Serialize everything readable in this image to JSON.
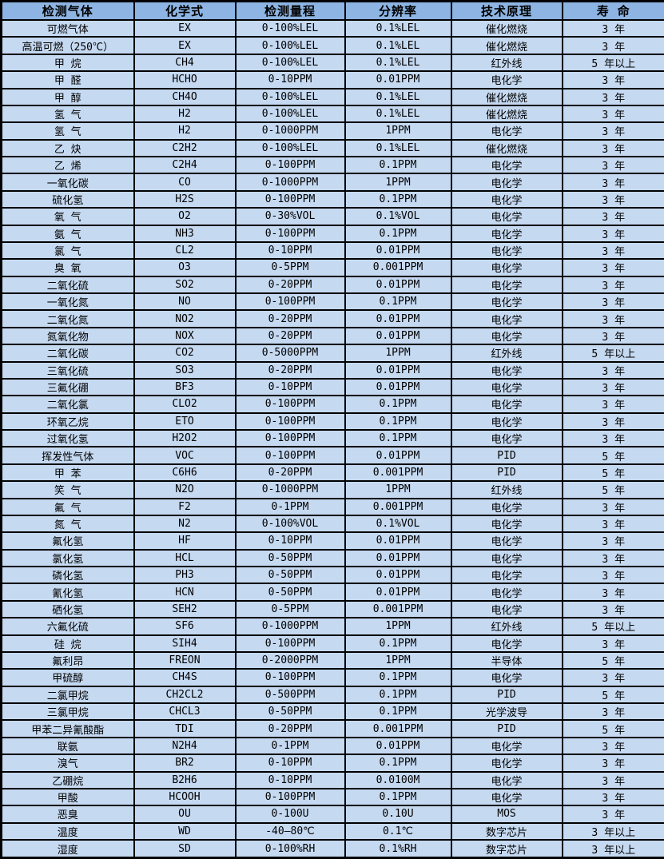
{
  "colors": {
    "header_bg": "#8db4e2",
    "row_bg": "#c5d9f1",
    "border": "#000000",
    "text": "#000000"
  },
  "chart_data": {
    "type": "table",
    "title": "",
    "columns": [
      "检测气体",
      "化学式",
      "检测量程",
      "分辨率",
      "技术原理",
      "寿 命"
    ],
    "rows": [
      [
        "可燃气体",
        "EX",
        "0-100%LEL",
        "0.1%LEL",
        "催化燃烧",
        "3 年"
      ],
      [
        "高温可燃（250℃）",
        "EX",
        "0-100%LEL",
        "0.1%LEL",
        "催化燃烧",
        "3 年"
      ],
      [
        "甲 烷",
        "CH4",
        "0-100%LEL",
        "0.1%LEL",
        "红外线",
        "5 年以上"
      ],
      [
        "甲 醛",
        "HCHO",
        "0-10PPM",
        "0.01PPM",
        "电化学",
        "3 年"
      ],
      [
        "甲 醇",
        "CH4O",
        "0-100%LEL",
        "0.1%LEL",
        "催化燃烧",
        "3 年"
      ],
      [
        "氢 气",
        "H2",
        "0-100%LEL",
        "0.1%LEL",
        "催化燃烧",
        "3 年"
      ],
      [
        "氢 气",
        "H2",
        "0-1000PPM",
        "1PPM",
        "电化学",
        "3 年"
      ],
      [
        "乙 炔",
        "C2H2",
        "0-100%LEL",
        "0.1%LEL",
        "催化燃烧",
        "3 年"
      ],
      [
        "乙 烯",
        "C2H4",
        "0-100PPM",
        "0.1PPM",
        "电化学",
        "3 年"
      ],
      [
        "一氧化碳",
        "CO",
        "0-1000PPM",
        "1PPM",
        "电化学",
        "3 年"
      ],
      [
        "硫化氢",
        "H2S",
        "0-100PPM",
        "0.1PPM",
        "电化学",
        "3 年"
      ],
      [
        "氧 气",
        "O2",
        "0-30%VOL",
        "0.1%VOL",
        "电化学",
        "3 年"
      ],
      [
        "氨 气",
        "NH3",
        "0-100PPM",
        "0.1PPM",
        "电化学",
        "3 年"
      ],
      [
        "氯 气",
        "CL2",
        "0-10PPM",
        "0.01PPM",
        "电化学",
        "3 年"
      ],
      [
        "臭 氧",
        "O3",
        "0-5PPM",
        "0.001PPM",
        "电化学",
        "3 年"
      ],
      [
        "二氧化硫",
        "SO2",
        "0-20PPM",
        "0.01PPM",
        "电化学",
        "3 年"
      ],
      [
        "一氧化氮",
        "NO",
        "0-100PPM",
        "0.1PPM",
        "电化学",
        "3 年"
      ],
      [
        "二氧化氮",
        "NO2",
        "0-20PPM",
        "0.01PPM",
        "电化学",
        "3 年"
      ],
      [
        "氮氧化物",
        "NOX",
        "0-20PPM",
        "0.01PPM",
        "电化学",
        "3 年"
      ],
      [
        "二氧化碳",
        "CO2",
        "0-5000PPM",
        "1PPM",
        "红外线",
        "5 年以上"
      ],
      [
        "三氧化硫",
        "SO3",
        "0-20PPM",
        "0.01PPM",
        "电化学",
        "3 年"
      ],
      [
        "三氟化硼",
        "BF3",
        "0-10PPM",
        "0.01PPM",
        "电化学",
        "3 年"
      ],
      [
        "二氧化氯",
        "CLO2",
        "0-100PPM",
        "0.1PPM",
        "电化学",
        "3 年"
      ],
      [
        "环氧乙烷",
        "ETO",
        "0-100PPM",
        "0.1PPM",
        "电化学",
        "3 年"
      ],
      [
        "过氧化氢",
        "H2O2",
        "0-100PPM",
        "0.1PPM",
        "电化学",
        "3 年"
      ],
      [
        "挥发性气体",
        "VOC",
        "0-100PPM",
        "0.01PPM",
        "PID",
        "5 年"
      ],
      [
        "甲 苯",
        "C6H6",
        "0-20PPM",
        "0.001PPM",
        "PID",
        "5 年"
      ],
      [
        "笑 气",
        "N2O",
        "0-1000PPM",
        "1PPM",
        "红外线",
        "5 年"
      ],
      [
        "氟 气",
        "F2",
        "0-1PPM",
        "0.001PPM",
        "电化学",
        "3 年"
      ],
      [
        "氮 气",
        "N2",
        "0-100%VOL",
        "0.1%VOL",
        "电化学",
        "3 年"
      ],
      [
        "氟化氢",
        "HF",
        "0-10PPM",
        "0.01PPM",
        "电化学",
        "3 年"
      ],
      [
        "氯化氢",
        "HCL",
        "0-50PPM",
        "0.01PPM",
        "电化学",
        "3 年"
      ],
      [
        "磷化氢",
        "PH3",
        "0-50PPM",
        "0.01PPM",
        "电化学",
        "3 年"
      ],
      [
        "氰化氢",
        "HCN",
        "0-50PPM",
        "0.01PPM",
        "电化学",
        "3 年"
      ],
      [
        "硒化氢",
        "SEH2",
        "0-5PPM",
        "0.001PPM",
        "电化学",
        "3 年"
      ],
      [
        "六氟化硫",
        "SF6",
        "0-1000PPM",
        "1PPM",
        "红外线",
        "5 年以上"
      ],
      [
        "硅 烷",
        "SIH4",
        "0-100PPM",
        "0.1PPM",
        "电化学",
        "3 年"
      ],
      [
        "氟利昂",
        "FREON",
        "0-2000PPM",
        "1PPM",
        "半导体",
        "5 年"
      ],
      [
        "甲硫醇",
        "CH4S",
        "0-100PPM",
        "0.1PPM",
        "电化学",
        "3 年"
      ],
      [
        "二氯甲烷",
        "CH2CL2",
        "0-500PPM",
        "0.1PPM",
        "PID",
        "5 年"
      ],
      [
        "三氯甲烷",
        "CHCL3",
        "0-50PPM",
        "0.1PPM",
        "光学波导",
        "3 年"
      ],
      [
        "甲苯二异氰酸酯",
        "TDI",
        "0-20PPM",
        "0.001PPM",
        "PID",
        "5 年"
      ],
      [
        "联氨",
        "N2H4",
        "0-1PPM",
        "0.01PPM",
        "电化学",
        "3 年"
      ],
      [
        "溴气",
        "BR2",
        "0-10PPM",
        "0.1PPM",
        "电化学",
        "3 年"
      ],
      [
        "乙硼烷",
        "B2H6",
        "0-10PPM",
        "0.0100M",
        "电化学",
        "3 年"
      ],
      [
        "甲酸",
        "HCOOH",
        "0-100PPM",
        "0.1PPM",
        "电化学",
        "3 年"
      ],
      [
        "恶臭",
        "OU",
        "0-100U",
        "0.10U",
        "MOS",
        "3 年"
      ],
      [
        "温度",
        "WD",
        "-40—80℃",
        "0.1℃",
        "数字芯片",
        "3 年以上"
      ],
      [
        "湿度",
        "SD",
        "0-100%RH",
        "0.1%RH",
        "数字芯片",
        "3 年以上"
      ]
    ]
  }
}
